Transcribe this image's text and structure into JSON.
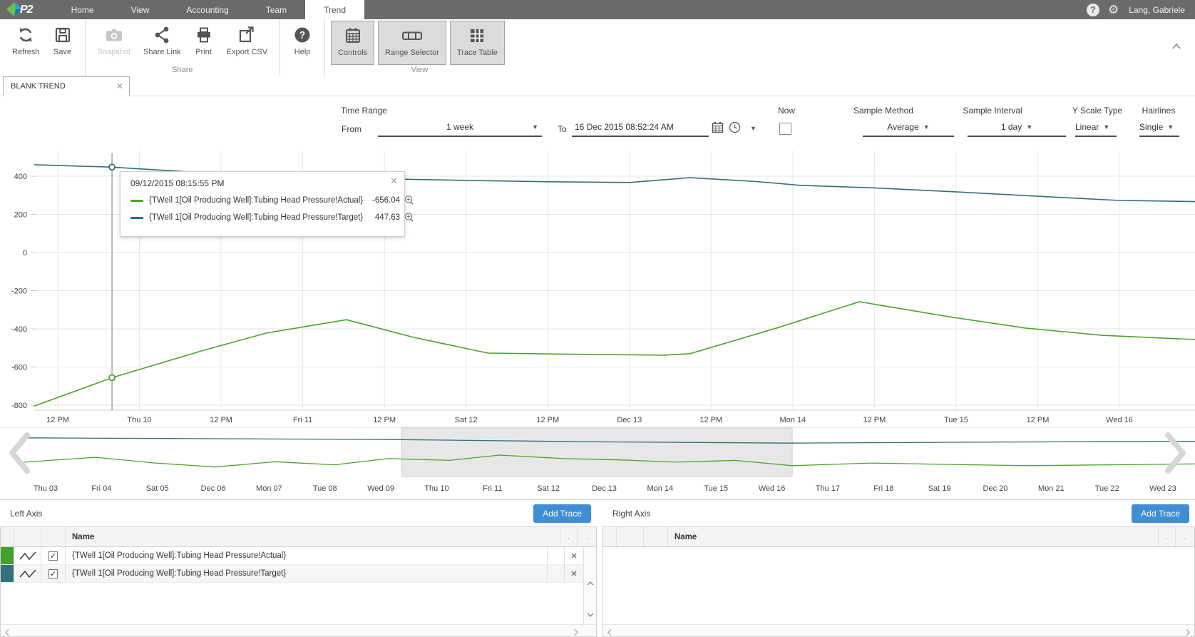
{
  "topbar": {
    "brand": "P2",
    "menu_items": [
      "Home",
      "View",
      "Accounting",
      "Team",
      "Trend"
    ],
    "active_item": "Trend",
    "user": "Lang, Gabriele"
  },
  "ribbon": {
    "refresh": "Refresh",
    "save": "Save",
    "snapshot": "Snapshot",
    "share_link": "Share Link",
    "print": "Print",
    "export_csv": "Export CSV",
    "help": "Help",
    "controls": "Controls",
    "range_selector": "Range Selector",
    "trace_table": "Trace Table",
    "group_share": "Share",
    "group_view": "View"
  },
  "tabstrip": {
    "tab_title": "BLANK TREND"
  },
  "controls_bar": {
    "time_range": "Time Range",
    "from": "From",
    "from_value": "1 week",
    "to": "To",
    "to_value": "16 Dec 2015 08:52:24 AM",
    "now": "Now",
    "now_checked": false,
    "sample_method": "Sample Method",
    "sample_method_value": "Average",
    "sample_interval": "Sample Interval",
    "sample_interval_value": "1 day",
    "y_scale_type": "Y Scale Type",
    "y_scale_value": "Linear",
    "hairlines": "Hairlines",
    "hairlines_value": "Single"
  },
  "tooltip": {
    "timestamp": "09/12/2015 08:15:55 PM",
    "rows": [
      {
        "name": "{TWell 1[Oil Producing Well]:Tubing Head Pressure!Actual}",
        "value": "-656.04",
        "color": "#4aa32c"
      },
      {
        "name": "{TWell 1[Oil Producing Well]:Tubing Head Pressure!Target}",
        "value": "447.63",
        "color": "#326f7e"
      }
    ]
  },
  "chart_data": [
    {
      "type": "line",
      "role": "main-trend",
      "x_tick_labels": [
        "12 PM",
        "Thu 10",
        "12 PM",
        "Fri 11",
        "12 PM",
        "Sat 12",
        "12 PM",
        "Dec 13",
        "12 PM",
        "Mon 14",
        "12 PM",
        "Tue 15",
        "12 PM",
        "Wed 16"
      ],
      "y_tick_labels": [
        400,
        200,
        0,
        -200,
        -400,
        -600,
        -800
      ],
      "ylim": [
        -850,
        470
      ],
      "grid": true,
      "series": [
        {
          "name": "{TWell 1[Oil Producing Well]:Tubing Head Pressure!Actual}",
          "color": "#4aa32c",
          "x_frac": [
            0,
            0.067,
            0.144,
            0.2,
            0.269,
            0.327,
            0.391,
            0.462,
            0.542,
            0.565,
            0.64,
            0.711,
            0.788,
            0.854,
            0.92,
            1.0
          ],
          "values": [
            -805,
            -656.04,
            -516,
            -422,
            -352,
            -445,
            -527,
            -533,
            -538,
            -530,
            -395,
            -258,
            -337,
            -396,
            -434,
            -456
          ]
        },
        {
          "name": "{TWell 1[Oil Producing Well]:Tubing Head Pressure!Target}",
          "color": "#326f7e",
          "x_frac": [
            0,
            0.067,
            0.162,
            0.232,
            0.302,
            0.372,
            0.442,
            0.513,
            0.565,
            0.622,
            0.66,
            0.726,
            0.794,
            0.864,
            0.935,
            1.0
          ],
          "values": [
            460,
            447.63,
            412,
            396,
            386,
            378,
            371,
            367,
            392,
            372,
            352,
            338,
            318,
            295,
            273,
            267
          ]
        }
      ],
      "hairline": {
        "x_frac": 0.067,
        "timestamp": "09/12/2015 08:15:55 PM",
        "actual": -656.04,
        "target": 447.63
      }
    },
    {
      "type": "line",
      "role": "range-selector",
      "x_tick_labels": [
        "Thu 03",
        "Fri 04",
        "Sat 05",
        "Dec 06",
        "Mon 07",
        "Tue 08",
        "Wed 09",
        "Thu 10",
        "Fri 11",
        "Sat 12",
        "Dec 13",
        "Mon 14",
        "Tue 15",
        "Wed 16",
        "Thu 17",
        "Fri 18",
        "Sat 19",
        "Dec 20",
        "Mon 21",
        "Tue 22",
        "Wed 23"
      ],
      "selection_frac": [
        0.336,
        0.663
      ],
      "series": [
        {
          "name": "Target",
          "color": "#326f7e",
          "x_frac": [
            0.02,
            0.18,
            0.336,
            0.5,
            0.663,
            0.8,
            1.0
          ],
          "y_frac": [
            0.19,
            0.21,
            0.23,
            0.28,
            0.31,
            0.29,
            0.27
          ]
        },
        {
          "name": "Actual",
          "color": "#4aa32c",
          "x_frac": [
            0.02,
            0.08,
            0.13,
            0.18,
            0.23,
            0.28,
            0.325,
            0.376,
            0.418,
            0.472,
            0.52,
            0.567,
            0.615,
            0.663,
            0.73,
            0.79,
            0.86,
            0.93,
            1.0
          ],
          "y_frac": [
            0.74,
            0.63,
            0.76,
            0.85,
            0.73,
            0.8,
            0.66,
            0.7,
            0.58,
            0.66,
            0.69,
            0.74,
            0.7,
            0.82,
            0.76,
            0.79,
            0.82,
            0.8,
            0.78
          ]
        }
      ]
    }
  ],
  "left_axis": {
    "title": "Left Axis",
    "add_trace": "Add Trace",
    "name_header": "Name",
    "col_dots": [
      ".",
      "."
    ],
    "traces": [
      {
        "color": "#3ea22b",
        "checked": true,
        "name": "{TWell 1[Oil Producing Well]:Tubing Head Pressure!Actual}"
      },
      {
        "color": "#35717e",
        "checked": true,
        "name": "{TWell 1[Oil Producing Well]:Tubing Head Pressure!Target}"
      }
    ]
  },
  "right_axis": {
    "title": "Right Axis",
    "add_trace": "Add Trace",
    "name_header": "Name",
    "col_dots": [
      ".",
      "."
    ],
    "traces": []
  },
  "colors": {
    "actual_green": "#4aa32c",
    "target_teal": "#326f7e",
    "accent_blue": "#3f8dd5"
  }
}
